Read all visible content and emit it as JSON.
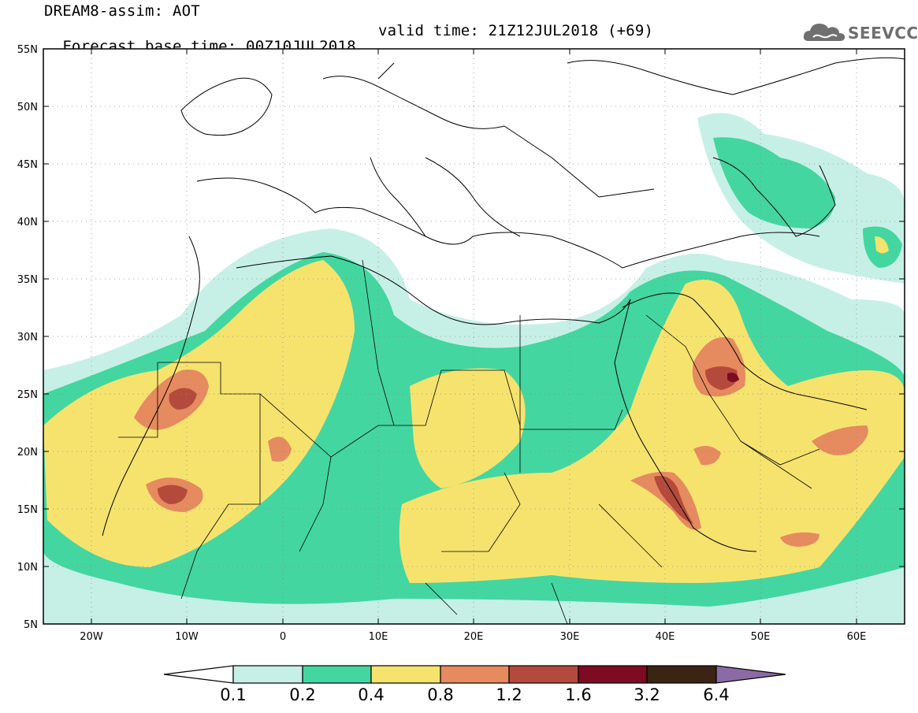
{
  "header": {
    "title": "DREAM8-assim: AOT",
    "base_time": "Forecast base time: 00Z10JUL2018",
    "valid_time": "valid time: 21Z12JUL2018 (+69)"
  },
  "logo": {
    "text": "SEEVCCC",
    "icon": "cloud-icon"
  },
  "map": {
    "lat_labels": [
      "55N",
      "50N",
      "45N",
      "40N",
      "35N",
      "30N",
      "25N",
      "20N",
      "15N",
      "10N",
      "5N"
    ],
    "lon_labels": [
      "20W",
      "10W",
      "0",
      "10E",
      "20E",
      "30E",
      "40E",
      "50E",
      "60E"
    ]
  },
  "legend": {
    "levels": [
      "0.1",
      "0.2",
      "0.4",
      "0.8",
      "1.2",
      "1.6",
      "3.2",
      "6.4"
    ],
    "colors": [
      "#ffffff",
      "#c6f0e6",
      "#44d6a0",
      "#f6e36e",
      "#e68a5f",
      "#b44a3c",
      "#7d0b22",
      "#3b2414",
      "#8c6aa5"
    ]
  },
  "colors": {
    "very_low": "#c6f0e6",
    "low": "#44d6a0",
    "moderate": "#f6e36e",
    "high": "#e68a5f",
    "very_high": "#b44a3c",
    "extreme": "#7d0b22"
  }
}
